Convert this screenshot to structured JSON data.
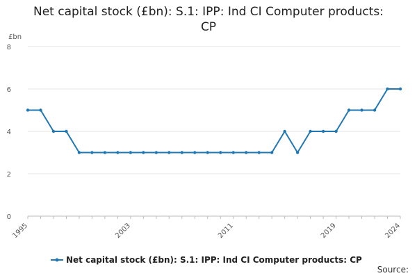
{
  "chart_data": {
    "type": "line",
    "title_line1": "Net capital stock (£bn): S.1: IPP: Ind CI Computer products:",
    "title_line2": "CP",
    "ylabel": "£bn",
    "ylim": [
      0,
      8
    ],
    "yticks": [
      "0",
      "2",
      "4",
      "6",
      "8"
    ],
    "xlim": [
      1995,
      2024
    ],
    "xticks": [
      "1995",
      "2003",
      "2011",
      "2019",
      "2024"
    ],
    "grid": true,
    "legend_position": "bottom",
    "series": [
      {
        "name": "Net capital stock (£bn): S.1: IPP: Ind CI Computer products: CP",
        "color": "#1f77b4",
        "x": [
          1995,
          1996,
          1997,
          1998,
          1999,
          2000,
          2001,
          2002,
          2003,
          2004,
          2005,
          2006,
          2007,
          2008,
          2009,
          2010,
          2011,
          2012,
          2013,
          2014,
          2015,
          2016,
          2017,
          2018,
          2019,
          2020,
          2021,
          2022,
          2023,
          2024
        ],
        "y": [
          5,
          5,
          4,
          4,
          3,
          3,
          3,
          3,
          3,
          3,
          3,
          3,
          3,
          3,
          3,
          3,
          3,
          3,
          3,
          3,
          4,
          3,
          4,
          4,
          4,
          5,
          5,
          5,
          6,
          6
        ]
      }
    ]
  },
  "footer": {
    "source_label": "Source:"
  }
}
